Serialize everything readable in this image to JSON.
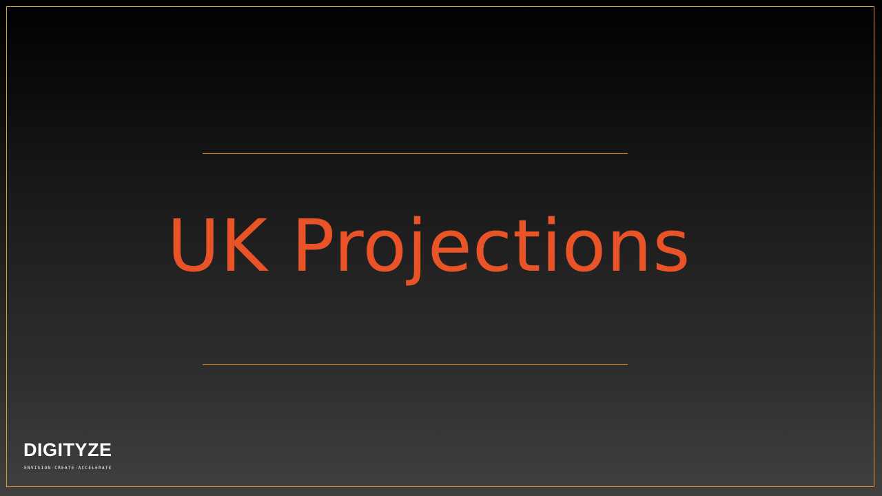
{
  "slide": {
    "title": "UK Projections"
  },
  "logo": {
    "wordmark": "DIGITYZE",
    "tagline": "ENVISION·CREATE·ACCELERATE"
  },
  "colors": {
    "accent_line": "#e8962e",
    "title": "#e85327",
    "background_top": "#000000",
    "background_bottom": "#404040"
  }
}
